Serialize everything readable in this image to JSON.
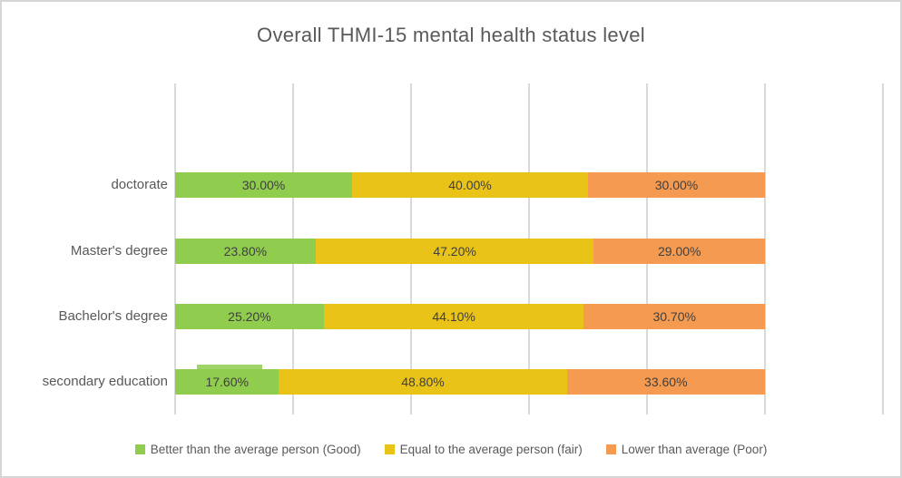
{
  "title": "Overall THMI-15 mental health status level",
  "chart_data": {
    "type": "bar",
    "orientation": "horizontal-stacked",
    "title": "Overall THMI-15 mental health status level",
    "categories": [
      "doctorate",
      "Master's degree",
      "Bachelor's degree",
      "secondary education"
    ],
    "series": [
      {
        "name": "Better than the average person (Good)",
        "color": "#90cc4e",
        "values": [
          30.0,
          23.8,
          25.2,
          17.6
        ],
        "labels": [
          "30.00%",
          "23.80%",
          "25.20%",
          "17.60%"
        ]
      },
      {
        "name": "Equal to the average person (fair)",
        "color": "#e9c318",
        "values": [
          40.0,
          47.2,
          44.1,
          48.8
        ],
        "labels": [
          "40.00%",
          "47.20%",
          "44.10%",
          "48.80%"
        ]
      },
      {
        "name": "Lower than average (Poor)",
        "color": "#f59b51",
        "values": [
          30.0,
          29.0,
          30.7,
          33.6
        ],
        "labels": [
          "30.00%",
          "29.00%",
          "30.70%",
          "33.60%"
        ]
      }
    ],
    "xlabel": "",
    "ylabel": "",
    "axis": {
      "min": 0,
      "max": 120,
      "step": 20,
      "tick_labels_visible": false
    },
    "grid": true,
    "legend_position": "bottom",
    "colors": {
      "title_text": "#595959",
      "category_text": "#595959",
      "data_label_text": "#3f3f3f",
      "gridline": "#d9d9d9",
      "frame_border": "#d5d5d5",
      "background": "#ffffff"
    }
  }
}
